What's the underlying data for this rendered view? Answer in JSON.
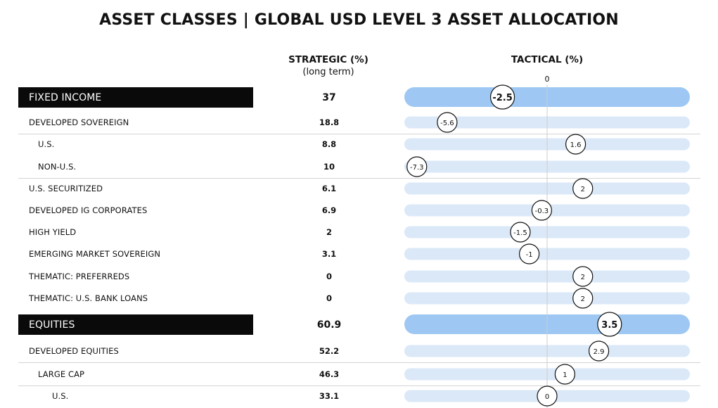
{
  "title": "ASSET CLASSES | GLOBAL USD LEVEL 3 ASSET ALLOCATION",
  "columns": {
    "strategic": "STRATEGIC (%)",
    "strategic_sub": "(long term)",
    "tactical": "TACTICAL (%)",
    "zero_tick": "0"
  },
  "colors": {
    "header_bg": "#0a0a0a",
    "bar_major": "#9ec8f3",
    "bar_minor": "#dbe8f8",
    "zero_line": "#cccccc"
  },
  "chart_data": {
    "type": "bar",
    "title": "ASSET CLASSES | GLOBAL USD LEVEL 3 ASSET ALLOCATION",
    "xlim": [
      -8,
      8
    ],
    "rows": [
      {
        "label": "FIXED INCOME",
        "strategic": "37",
        "tactical": -2.5,
        "tactical_label": "-2.5",
        "level": "header"
      },
      {
        "label": "DEVELOPED SOVEREIGN",
        "strategic": "18.8",
        "tactical": -5.6,
        "tactical_label": "-5.6",
        "level": 1
      },
      {
        "label": "U.S.",
        "strategic": "8.8",
        "tactical": 1.6,
        "tactical_label": "1.6",
        "level": 2
      },
      {
        "label": "NON-U.S.",
        "strategic": "10",
        "tactical": -7.3,
        "tactical_label": "-7.3",
        "level": 2
      },
      {
        "label": "U.S. SECURITIZED",
        "strategic": "6.1",
        "tactical": 2,
        "tactical_label": "2",
        "level": 1
      },
      {
        "label": "DEVELOPED IG CORPORATES",
        "strategic": "6.9",
        "tactical": -0.3,
        "tactical_label": "-0.3",
        "level": 1
      },
      {
        "label": "HIGH  YIELD",
        "strategic": "2",
        "tactical": -1.5,
        "tactical_label": "-1.5",
        "level": 1
      },
      {
        "label": "EMERGING MARKET SOVEREIGN",
        "strategic": "3.1",
        "tactical": -1,
        "tactical_label": "-1",
        "level": 1
      },
      {
        "label": "THEMATIC: PREFERREDS",
        "strategic": "0",
        "tactical": 2,
        "tactical_label": "2",
        "level": 1
      },
      {
        "label": "THEMATIC: U.S. BANK LOANS",
        "strategic": "0",
        "tactical": 2,
        "tactical_label": "2",
        "level": 1
      },
      {
        "label": "EQUITIES",
        "strategic": "60.9",
        "tactical": 3.5,
        "tactical_label": "3.5",
        "level": "header"
      },
      {
        "label": "DEVELOPED EQUITIES",
        "strategic": "52.2",
        "tactical": 2.9,
        "tactical_label": "2.9",
        "level": 1
      },
      {
        "label": "LARGE  CAP",
        "strategic": "46.3",
        "tactical": 1,
        "tactical_label": "1",
        "level": 2
      },
      {
        "label": "U.S.",
        "strategic": "33.1",
        "tactical": 0,
        "tactical_label": "0",
        "level": 3
      }
    ]
  }
}
